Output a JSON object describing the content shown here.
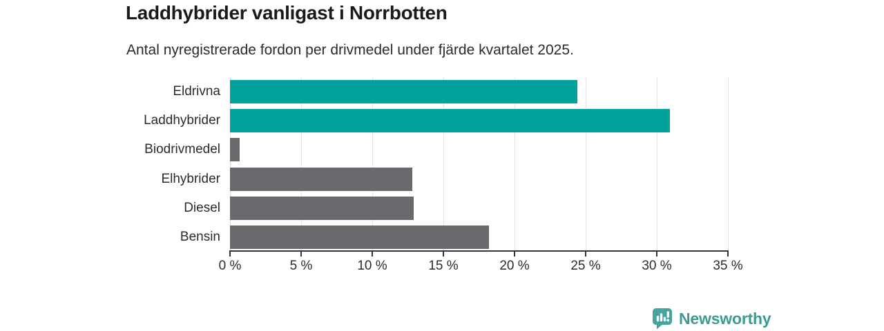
{
  "title": "Laddhybrider vanligast i Norrbotten",
  "subtitle": "Antal nyregistrerade fordon per drivmedel under fjärde kvartalet 2025.",
  "chart_data": {
    "type": "bar",
    "orientation": "horizontal",
    "title": "Laddhybrider vanligast i Norrbotten",
    "subtitle": "Antal nyregistrerade fordon per drivmedel under fjärde kvartalet 2025.",
    "categories": [
      "Eldrivna",
      "Laddhybrider",
      "Biodrivmedel",
      "Elhybrider",
      "Diesel",
      "Bensin"
    ],
    "values": [
      24.4,
      30.9,
      0.7,
      12.8,
      12.9,
      18.2
    ],
    "unit": "%",
    "bar_colors": [
      "#00a29b",
      "#00a29b",
      "#6a6a6e",
      "#6a6a6e",
      "#6a6a6e",
      "#6a6a6e"
    ],
    "highlight_color": "#00a29b",
    "default_color": "#6a6a6e",
    "xlim": [
      0,
      35
    ],
    "xticks": [
      0,
      5,
      10,
      15,
      20,
      25,
      30,
      35
    ],
    "xtick_labels": [
      "0 %",
      "5 %",
      "10 %",
      "15 %",
      "20 %",
      "25 %",
      "30 %",
      "35 %"
    ],
    "grid": "vertical",
    "gridline_color": "#e3e3e3",
    "axis_color": "#343434",
    "legend": "none"
  },
  "footer": {
    "brand": "Newsworthy",
    "brand_color": "#3b9b94",
    "logo_icon": "bar-chart-speech-bubble-icon",
    "logo_icon_color": "#45a49d"
  }
}
